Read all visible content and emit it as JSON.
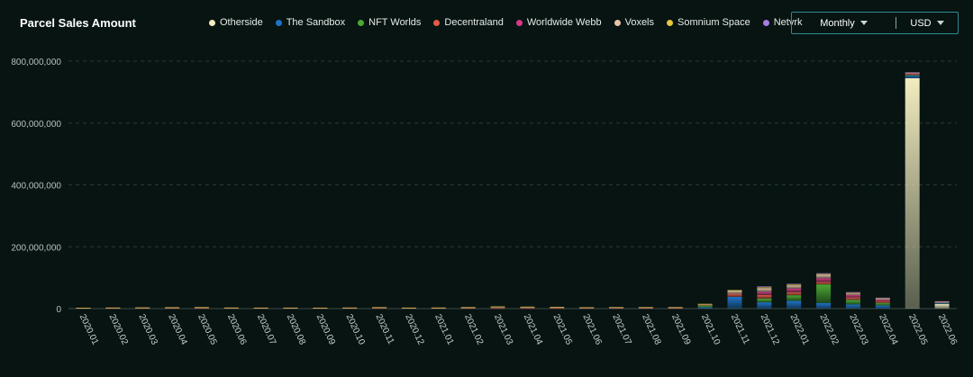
{
  "chart_data": {
    "type": "bar",
    "stacked": true,
    "title": "Parcel Sales Amount",
    "xlabel": "",
    "ylabel": "",
    "ylim": [
      0,
      800000000
    ],
    "yticks": [
      0,
      200000000,
      400000000,
      600000000,
      800000000
    ],
    "ytick_labels": [
      "0",
      "200,000,000",
      "400,000,000",
      "600,000,000",
      "800,000,000"
    ],
    "grid": true,
    "legend_position": "top",
    "categories": [
      "2020.01",
      "2020.02",
      "2020.03",
      "2020.04",
      "2020.05",
      "2020.06",
      "2020.07",
      "2020.08",
      "2020.09",
      "2020.10",
      "2020.11",
      "2020.12",
      "2021.01",
      "2021.02",
      "2021.03",
      "2021.04",
      "2021.05",
      "2021.06",
      "2021.07",
      "2021.08",
      "2021.09",
      "2021.10",
      "2021.11",
      "2021.12",
      "2022.01",
      "2022.02",
      "2022.03",
      "2022.04",
      "2022.05",
      "2022.06"
    ],
    "series": [
      {
        "name": "Otherside",
        "color": "#f2ecbf",
        "values": [
          0,
          0,
          0,
          0,
          0,
          0,
          0,
          0,
          0,
          0,
          0,
          0,
          0,
          0,
          0,
          0,
          0,
          0,
          0,
          0,
          0,
          0,
          0,
          0,
          0,
          0,
          0,
          0,
          745000000,
          15000000
        ]
      },
      {
        "name": "The Sandbox",
        "color": "#1f73c8",
        "values": [
          0,
          0,
          0,
          0,
          0,
          0,
          0,
          0,
          0,
          0,
          0,
          0,
          0,
          0,
          0,
          0,
          0,
          0,
          0,
          0,
          0,
          4000000,
          38000000,
          20000000,
          25000000,
          18000000,
          13000000,
          10000000,
          8000000,
          3000000
        ]
      },
      {
        "name": "NFT Worlds",
        "color": "#4ca832",
        "values": [
          0,
          0,
          0,
          0,
          0,
          0,
          0,
          0,
          0,
          0,
          0,
          0,
          0,
          0,
          0,
          0,
          0,
          0,
          0,
          0,
          0,
          6000000,
          0,
          12000000,
          18000000,
          60000000,
          15000000,
          8000000,
          2000000,
          1000000
        ]
      },
      {
        "name": "Decentraland",
        "color": "#e25a47",
        "values": [
          300000,
          600000,
          800000,
          1200000,
          1500000,
          600000,
          500000,
          500000,
          400000,
          600000,
          1500000,
          500000,
          600000,
          1500000,
          3000000,
          2500000,
          2000000,
          1200000,
          1500000,
          1500000,
          1500000,
          2000000,
          10000000,
          12000000,
          10000000,
          8000000,
          8000000,
          6000000,
          3000000,
          1000000
        ]
      },
      {
        "name": "Worldwide Webb",
        "color": "#d63a86",
        "values": [
          0,
          0,
          0,
          0,
          0,
          0,
          0,
          0,
          0,
          0,
          0,
          0,
          0,
          0,
          0,
          0,
          0,
          0,
          0,
          0,
          0,
          0,
          0,
          10000000,
          12000000,
          12000000,
          8000000,
          5000000,
          2000000,
          500000
        ]
      },
      {
        "name": "Voxels",
        "color": "#e6c4a8",
        "values": [
          200000,
          500000,
          600000,
          1000000,
          1000000,
          500000,
          400000,
          400000,
          300000,
          500000,
          800000,
          400000,
          500000,
          1000000,
          2000000,
          1500000,
          1200000,
          800000,
          1000000,
          1000000,
          1000000,
          1000000,
          10000000,
          12000000,
          10000000,
          12000000,
          5000000,
          3000000,
          1000000,
          500000
        ]
      },
      {
        "name": "Somnium Space",
        "color": "#e8c53a",
        "values": [
          100000,
          200000,
          300000,
          600000,
          500000,
          300000,
          200000,
          200000,
          200000,
          300000,
          500000,
          200000,
          300000,
          500000,
          1000000,
          800000,
          800000,
          500000,
          500000,
          500000,
          500000,
          800000,
          2000000,
          3000000,
          3000000,
          2000000,
          2000000,
          1000000,
          500000,
          200000
        ]
      },
      {
        "name": "Netvrk",
        "color": "#a67de0",
        "values": [
          0,
          0,
          0,
          0,
          0,
          0,
          0,
          0,
          0,
          0,
          0,
          0,
          0,
          0,
          0,
          0,
          0,
          0,
          0,
          0,
          0,
          0,
          0,
          3000000,
          2000000,
          1000000,
          500000,
          500000,
          300000,
          100000
        ]
      }
    ]
  },
  "controls": {
    "period_label": "Monthly",
    "currency_label": "USD"
  }
}
